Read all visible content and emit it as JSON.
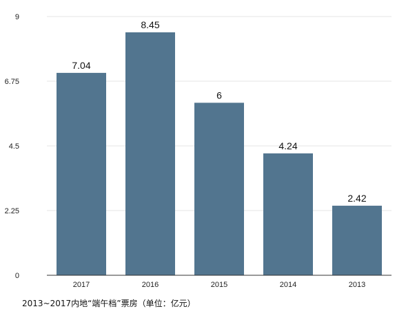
{
  "caption": "2013~2017内地“端午档”票房（单位：亿元）",
  "chart_data": {
    "type": "bar",
    "title": "",
    "xlabel": "",
    "ylabel": "",
    "categories": [
      "2017",
      "2016",
      "2015",
      "2014",
      "2013"
    ],
    "values": [
      7.04,
      8.45,
      6,
      4.24,
      2.42
    ],
    "data_labels": [
      "7.04",
      "8.45",
      "6",
      "4.24",
      "2.42"
    ],
    "ylim": [
      0,
      9
    ],
    "yticks": [
      0,
      2.25,
      4.5,
      6.75,
      9
    ],
    "ytick_labels": [
      "0",
      "2.25",
      "4.5",
      "6.75",
      "9"
    ],
    "grid": true,
    "bar_color": "#52758f",
    "grid_color": "#e6e6e6",
    "axis_color": "#333333"
  }
}
